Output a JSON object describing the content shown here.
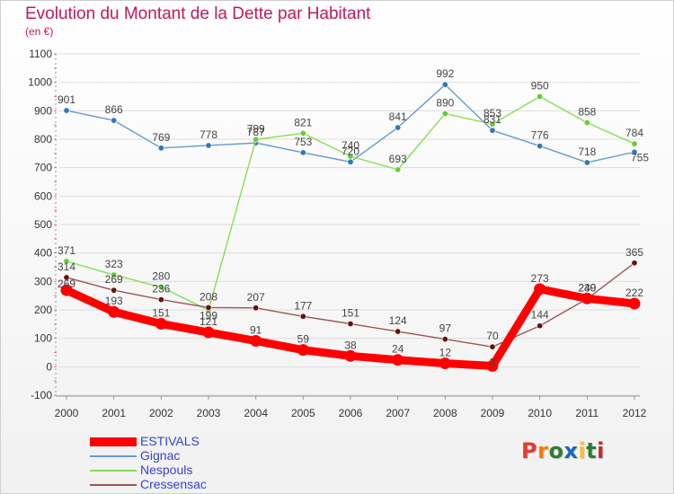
{
  "header": {
    "title": "Evolution du Montant de la Dette par Habitant",
    "unit": "(en €)"
  },
  "colors": {
    "title": "#c2185b",
    "legend_text": "#3344cc",
    "grid": "#dddddd",
    "axis": "#999999"
  },
  "logo": {
    "letters": [
      "P",
      "r",
      "o",
      "x",
      "i",
      "t",
      "i"
    ],
    "colors": [
      "#e53935",
      "#f57c00",
      "#2e7d32",
      "#1565c0",
      "#fbc02d",
      "#2e7d32",
      "#c62828"
    ]
  },
  "chart_data": {
    "type": "line",
    "title": "Evolution du Montant de la Dette par Habitant",
    "xlabel": "",
    "ylabel": "(en €)",
    "x": [
      "2000",
      "2001",
      "2002",
      "2003",
      "2004",
      "2005",
      "2006",
      "2007",
      "2008",
      "2009",
      "2010",
      "2011",
      "2012"
    ],
    "ylim": [
      -100,
      1100
    ],
    "yticks": [
      -100,
      0,
      100,
      200,
      300,
      400,
      500,
      600,
      700,
      800,
      900,
      1000,
      1100
    ],
    "grid": true,
    "legend_position": "bottom-left",
    "series": [
      {
        "name": "ESTIVALS",
        "color": "#ff0000",
        "marker": "#ff0000",
        "values": [
          269,
          193,
          151,
          121,
          91,
          59,
          38,
          24,
          12,
          3,
          273,
          240,
          222
        ]
      },
      {
        "name": "Gignac",
        "color": "#6699cc",
        "marker": "#3377bb",
        "values": [
          901,
          866,
          769,
          778,
          787,
          753,
          720,
          null,
          992,
          831,
          776,
          718,
          755
        ]
      },
      {
        "name": "Nespouls",
        "color": "#88dd55",
        "marker": "#66cc33",
        "values": [
          371,
          323,
          280,
          199,
          799,
          821,
          740,
          693,
          890,
          853,
          950,
          858,
          784
        ]
      },
      {
        "name": "Cressensac",
        "color": "#995555",
        "marker": "#661111",
        "values": [
          314,
          269,
          236,
          208,
          207,
          177,
          151,
          124,
          97,
          70,
          144,
          239,
          365
        ]
      }
    ],
    "series_fills": {
      "Gignac": [
        901,
        866,
        769,
        778,
        787,
        753,
        720,
        841,
        992,
        831,
        776,
        718,
        755
      ]
    }
  }
}
